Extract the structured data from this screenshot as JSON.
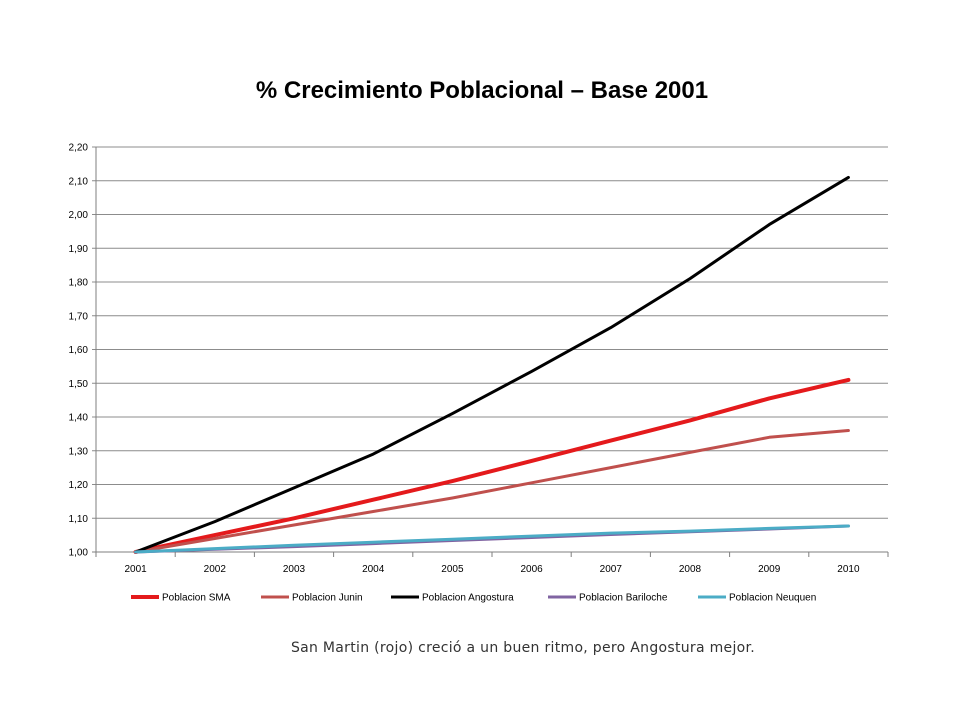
{
  "caption": "San Martin (rojo) creció a un buen ritmo, pero Angostura mejor.",
  "chart_data": {
    "type": "line",
    "title": "% Crecimiento Poblacional – Base 2001",
    "xlabel": "",
    "ylabel": "",
    "x": [
      "2001",
      "2002",
      "2003",
      "2004",
      "2005",
      "2006",
      "2007",
      "2008",
      "2009",
      "2010"
    ],
    "ylim": [
      1.0,
      2.2
    ],
    "yticks": [
      "1,00",
      "1,10",
      "1,20",
      "1,30",
      "1,40",
      "1,50",
      "1,60",
      "1,70",
      "1,80",
      "1,90",
      "2,00",
      "2,10",
      "2,20"
    ],
    "grid": true,
    "legend_position": "bottom",
    "series": [
      {
        "name": "Poblacion SMA",
        "color": "#e41a1c",
        "width": 4,
        "values": [
          1.0,
          1.05,
          1.1,
          1.155,
          1.21,
          1.27,
          1.33,
          1.39,
          1.455,
          1.51
        ]
      },
      {
        "name": "Poblacion Junin",
        "color": "#c0504d",
        "width": 3,
        "values": [
          1.0,
          1.04,
          1.08,
          1.12,
          1.16,
          1.205,
          1.25,
          1.295,
          1.34,
          1.36
        ]
      },
      {
        "name": "Poblacion Angostura",
        "color": "#000000",
        "width": 3,
        "values": [
          1.0,
          1.09,
          1.19,
          1.29,
          1.41,
          1.535,
          1.665,
          1.81,
          1.97,
          2.11
        ]
      },
      {
        "name": "Poblacion Bariloche",
        "color": "#8064a2",
        "width": 3,
        "values": [
          1.0,
          1.008,
          1.016,
          1.025,
          1.034,
          1.043,
          1.052,
          1.06,
          1.068,
          1.077
        ]
      },
      {
        "name": "Poblacion Neuquen",
        "color": "#4bacc6",
        "width": 3,
        "values": [
          1.0,
          1.01,
          1.02,
          1.029,
          1.038,
          1.047,
          1.056,
          1.062,
          1.07,
          1.077
        ]
      }
    ]
  }
}
